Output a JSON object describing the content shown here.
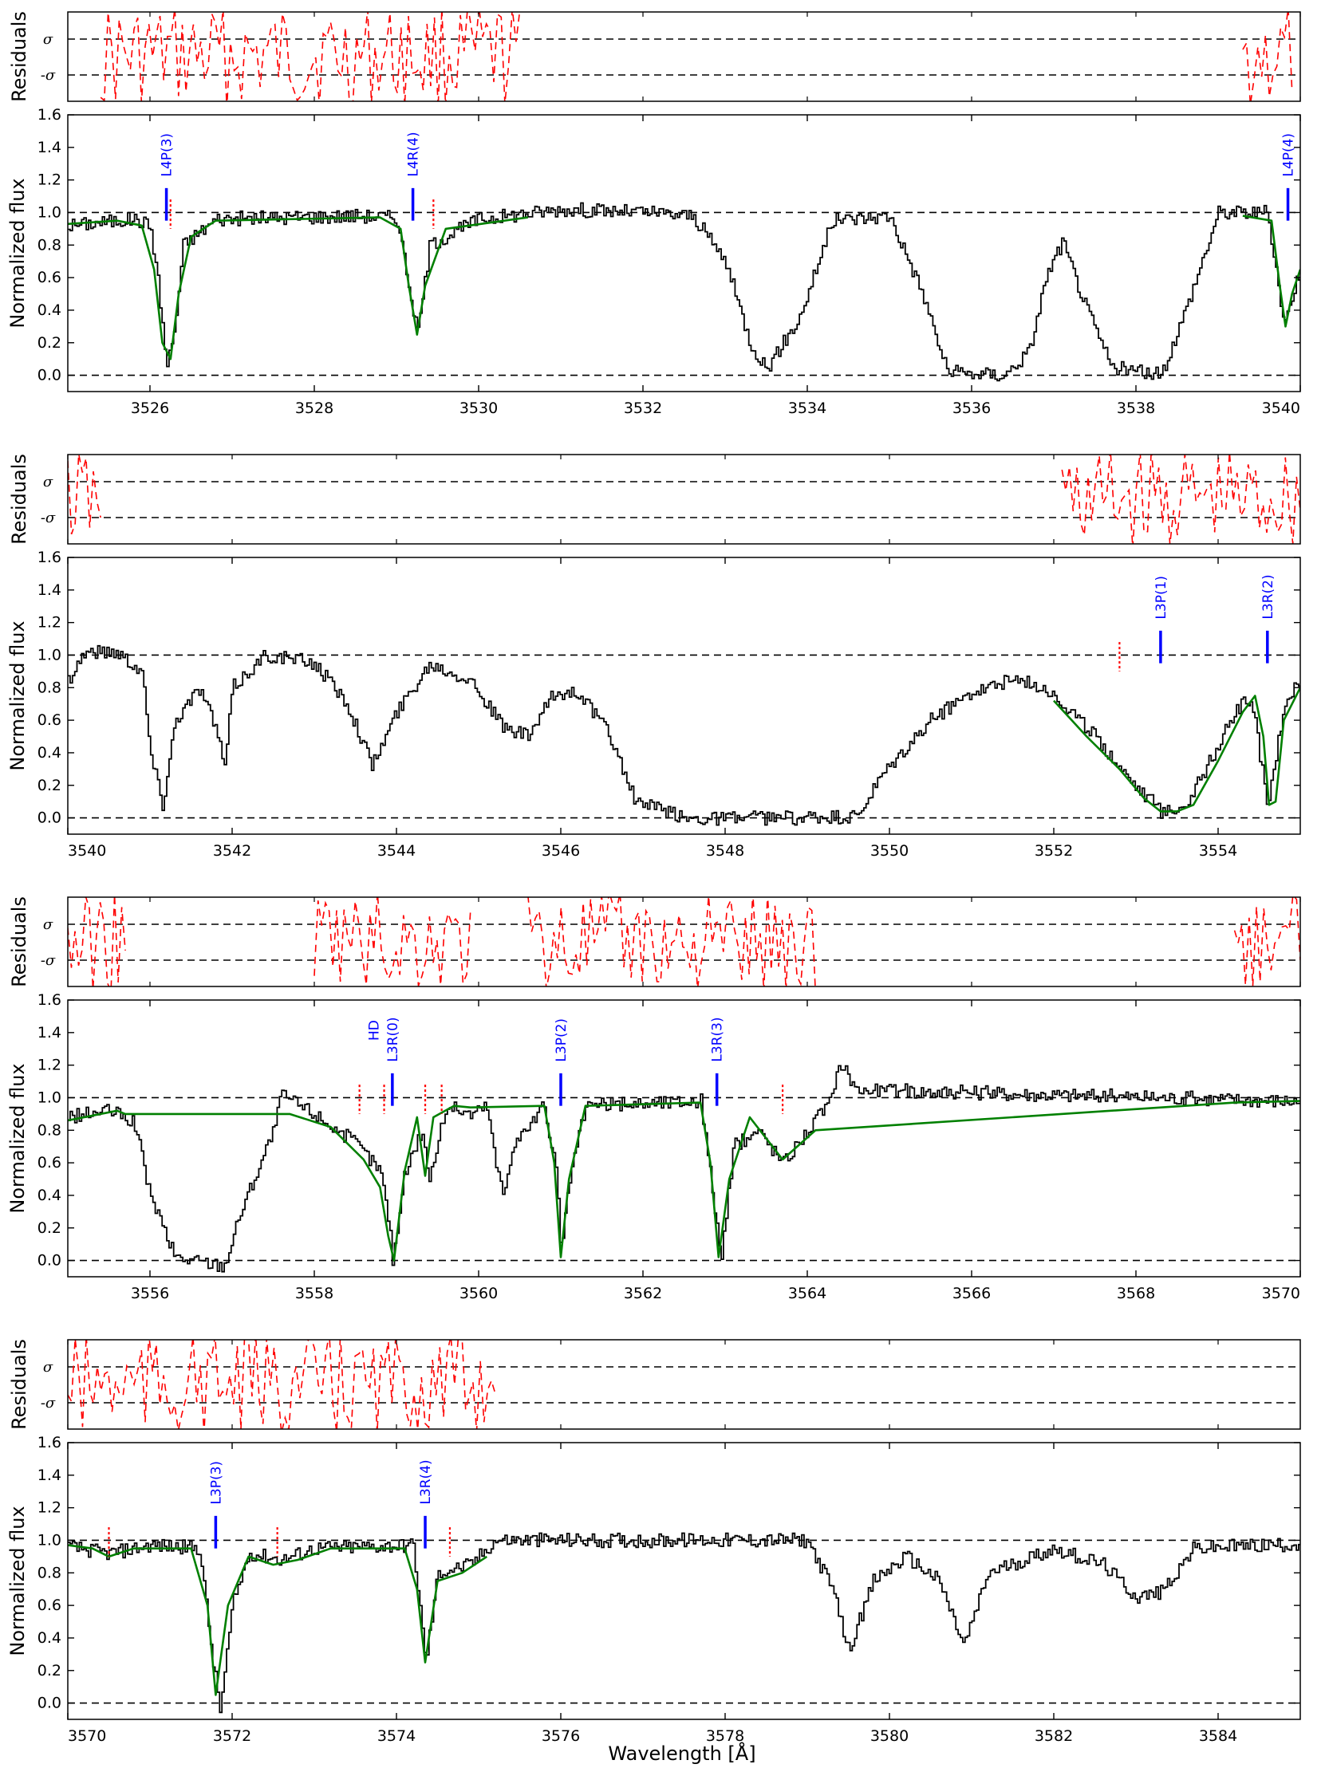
{
  "figure": {
    "xlabel": "Wavelength [Å]",
    "residual_ylabel": "Residuals",
    "flux_ylabel": "Normalized flux",
    "sigma_label": "σ",
    "neg_sigma_label": "-σ",
    "colors": {
      "data": "#000000",
      "model": "#008000",
      "residuals": "#ff0000",
      "line_markers": "#0000ff",
      "blend_markers": "#ff0000",
      "reference_lines": "#000000"
    }
  },
  "chart_data": [
    {
      "type": "line",
      "panel": 1,
      "xlim": [
        3525,
        3540
      ],
      "ylim": [
        -0.1,
        1.6
      ],
      "xticks": [
        3526,
        3528,
        3530,
        3532,
        3534,
        3536,
        3538,
        3540
      ],
      "yticks": [
        0.0,
        0.2,
        0.4,
        0.6,
        0.8,
        1.0,
        1.2,
        1.4,
        1.6
      ],
      "reference_levels": [
        0.0,
        1.0
      ],
      "spectrum": [
        [
          3525.0,
          0.92
        ],
        [
          3525.8,
          0.96
        ],
        [
          3526.0,
          0.92
        ],
        [
          3526.1,
          0.55
        ],
        [
          3526.2,
          0.05
        ],
        [
          3526.3,
          0.3
        ],
        [
          3526.4,
          0.8
        ],
        [
          3526.8,
          0.96
        ],
        [
          3528.5,
          0.98
        ],
        [
          3529.0,
          0.97
        ],
        [
          3529.15,
          0.55
        ],
        [
          3529.25,
          0.25
        ],
        [
          3529.4,
          0.8
        ],
        [
          3530.0,
          0.96
        ],
        [
          3531.0,
          1.02
        ],
        [
          3532.0,
          1.0
        ],
        [
          3532.6,
          0.98
        ],
        [
          3533.0,
          0.7
        ],
        [
          3533.3,
          0.2
        ],
        [
          3533.5,
          0.04
        ],
        [
          3533.9,
          0.35
        ],
        [
          3534.3,
          0.95
        ],
        [
          3535.0,
          0.98
        ],
        [
          3535.4,
          0.5
        ],
        [
          3535.7,
          0.02
        ],
        [
          3536.4,
          0.0
        ],
        [
          3536.7,
          0.15
        ],
        [
          3536.9,
          0.6
        ],
        [
          3537.1,
          0.82
        ],
        [
          3537.4,
          0.4
        ],
        [
          3537.7,
          0.05
        ],
        [
          3538.3,
          0.0
        ],
        [
          3538.6,
          0.4
        ],
        [
          3539.0,
          1.0
        ],
        [
          3539.6,
          1.0
        ],
        [
          3539.8,
          0.3
        ],
        [
          3539.9,
          0.5
        ],
        [
          3540.0,
          0.65
        ]
      ],
      "model": [
        [
          3525.0,
          0.93
        ],
        [
          3525.6,
          0.95
        ],
        [
          3525.9,
          0.92
        ],
        [
          3526.05,
          0.65
        ],
        [
          3526.15,
          0.2
        ],
        [
          3526.25,
          0.1
        ],
        [
          3526.35,
          0.5
        ],
        [
          3526.5,
          0.85
        ],
        [
          3526.8,
          0.95
        ],
        [
          3528.8,
          0.97
        ],
        [
          3529.05,
          0.9
        ],
        [
          3529.15,
          0.55
        ],
        [
          3529.25,
          0.25
        ],
        [
          3529.35,
          0.55
        ],
        [
          3529.6,
          0.9
        ],
        [
          3530.6,
          0.97
        ]
      ],
      "model_segments_end": [
        [
          3539.3,
          0.98
        ],
        [
          3539.65,
          0.95
        ],
        [
          3539.75,
          0.55
        ],
        [
          3539.82,
          0.3
        ],
        [
          3539.9,
          0.5
        ],
        [
          3540.0,
          0.65
        ]
      ],
      "residual_ranges": [
        [
          3525.4,
          3530.5
        ],
        [
          3539.3,
          3539.9
        ]
      ],
      "transitions": [
        {
          "label": "L4P(3)",
          "x": 3526.2
        },
        {
          "label": "L4R(4)",
          "x": 3529.2
        },
        {
          "label": "L4P(4)",
          "x": 3539.85
        }
      ],
      "blend_markers": [
        3526.25,
        3529.45
      ]
    },
    {
      "type": "line",
      "panel": 2,
      "xlim": [
        3540,
        3555
      ],
      "ylim": [
        -0.1,
        1.6
      ],
      "xticks": [
        3540,
        3542,
        3544,
        3546,
        3548,
        3550,
        3552,
        3554
      ],
      "yticks": [
        0.0,
        0.2,
        0.4,
        0.6,
        0.8,
        1.0,
        1.2,
        1.4,
        1.6
      ],
      "reference_levels": [
        0.0,
        1.0
      ],
      "spectrum": [
        [
          3540.0,
          0.85
        ],
        [
          3540.2,
          1.02
        ],
        [
          3540.6,
          1.02
        ],
        [
          3540.9,
          0.9
        ],
        [
          3541.0,
          0.4
        ],
        [
          3541.15,
          0.08
        ],
        [
          3541.3,
          0.6
        ],
        [
          3541.6,
          0.8
        ],
        [
          3541.8,
          0.55
        ],
        [
          3541.9,
          0.3
        ],
        [
          3542.0,
          0.8
        ],
        [
          3542.4,
          1.0
        ],
        [
          3543.0,
          0.95
        ],
        [
          3543.4,
          0.7
        ],
        [
          3543.7,
          0.32
        ],
        [
          3544.0,
          0.65
        ],
        [
          3544.4,
          0.95
        ],
        [
          3544.9,
          0.85
        ],
        [
          3545.3,
          0.55
        ],
        [
          3545.6,
          0.5
        ],
        [
          3545.9,
          0.75
        ],
        [
          3546.2,
          0.78
        ],
        [
          3546.6,
          0.5
        ],
        [
          3546.9,
          0.1
        ],
        [
          3547.5,
          0.0
        ],
        [
          3549.6,
          0.0
        ],
        [
          3549.9,
          0.25
        ],
        [
          3550.5,
          0.6
        ],
        [
          3551.0,
          0.78
        ],
        [
          3551.5,
          0.85
        ],
        [
          3551.9,
          0.8
        ],
        [
          3552.5,
          0.5
        ],
        [
          3553.0,
          0.2
        ],
        [
          3553.3,
          0.04
        ],
        [
          3553.6,
          0.08
        ],
        [
          3553.9,
          0.35
        ],
        [
          3554.2,
          0.65
        ],
        [
          3554.4,
          0.75
        ],
        [
          3554.5,
          0.4
        ],
        [
          3554.6,
          0.05
        ],
        [
          3554.8,
          0.7
        ],
        [
          3555.0,
          0.85
        ]
      ],
      "model": [
        [
          3552.0,
          0.72
        ],
        [
          3552.4,
          0.5
        ],
        [
          3552.8,
          0.3
        ],
        [
          3553.1,
          0.12
        ],
        [
          3553.3,
          0.04
        ],
        [
          3553.5,
          0.04
        ],
        [
          3553.7,
          0.08
        ],
        [
          3554.0,
          0.35
        ],
        [
          3554.3,
          0.65
        ],
        [
          3554.45,
          0.75
        ],
        [
          3554.55,
          0.5
        ],
        [
          3554.62,
          0.08
        ],
        [
          3554.7,
          0.1
        ],
        [
          3554.8,
          0.6
        ],
        [
          3555.0,
          0.8
        ]
      ],
      "residual_ranges": [
        [
          3540.0,
          3540.4
        ],
        [
          3552.1,
          3555.0
        ]
      ],
      "transitions": [
        {
          "label": "L3P(1)",
          "x": 3553.3
        },
        {
          "label": "L3R(2)",
          "x": 3554.6
        }
      ],
      "blend_markers": [
        3552.8
      ]
    },
    {
      "type": "line",
      "panel": 3,
      "xlim": [
        3555,
        3570
      ],
      "ylim": [
        -0.1,
        1.6
      ],
      "xticks": [
        3556,
        3558,
        3560,
        3562,
        3564,
        3566,
        3568,
        3570
      ],
      "yticks": [
        0.0,
        0.2,
        0.4,
        0.6,
        0.8,
        1.0,
        1.2,
        1.4,
        1.6
      ],
      "reference_levels": [
        0.0,
        1.0
      ],
      "spectrum": [
        [
          3555.0,
          0.88
        ],
        [
          3555.5,
          0.92
        ],
        [
          3555.8,
          0.85
        ],
        [
          3556.0,
          0.4
        ],
        [
          3556.3,
          0.02
        ],
        [
          3556.9,
          -0.03
        ],
        [
          3557.1,
          0.3
        ],
        [
          3557.5,
          0.8
        ],
        [
          3557.6,
          1.02
        ],
        [
          3558.0,
          0.9
        ],
        [
          3558.5,
          0.72
        ],
        [
          3558.8,
          0.55
        ],
        [
          3558.9,
          0.25
        ],
        [
          3558.95,
          0.0
        ],
        [
          3559.1,
          0.55
        ],
        [
          3559.3,
          0.8
        ],
        [
          3559.4,
          0.5
        ],
        [
          3559.6,
          0.95
        ],
        [
          3559.9,
          0.9
        ],
        [
          3560.1,
          0.95
        ],
        [
          3560.2,
          0.6
        ],
        [
          3560.3,
          0.4
        ],
        [
          3560.4,
          0.7
        ],
        [
          3560.8,
          0.95
        ],
        [
          3560.95,
          0.5
        ],
        [
          3561.0,
          0.02
        ],
        [
          3561.1,
          0.5
        ],
        [
          3561.3,
          0.95
        ],
        [
          3562.7,
          0.98
        ],
        [
          3562.85,
          0.4
        ],
        [
          3562.95,
          0.0
        ],
        [
          3563.1,
          0.7
        ],
        [
          3563.4,
          0.8
        ],
        [
          3563.7,
          0.6
        ],
        [
          3564.0,
          0.8
        ],
        [
          3564.3,
          1.0
        ],
        [
          3564.4,
          1.22
        ],
        [
          3564.6,
          1.05
        ],
        [
          3570.0,
          0.98
        ]
      ],
      "model": [
        [
          3555.0,
          0.86
        ],
        [
          3555.6,
          0.92
        ],
        [
          3555.7,
          0.9
        ],
        [
          3557.7,
          0.9
        ],
        [
          3558.2,
          0.82
        ],
        [
          3558.6,
          0.62
        ],
        [
          3558.8,
          0.45
        ],
        [
          3558.9,
          0.15
        ],
        [
          3558.97,
          0.0
        ],
        [
          3559.1,
          0.55
        ],
        [
          3559.25,
          0.88
        ],
        [
          3559.35,
          0.52
        ],
        [
          3559.45,
          0.88
        ],
        [
          3559.7,
          0.95
        ],
        [
          3559.9,
          0.94
        ],
        [
          3560.8,
          0.95
        ],
        [
          3560.92,
          0.6
        ],
        [
          3561.0,
          0.02
        ],
        [
          3561.1,
          0.5
        ],
        [
          3561.3,
          0.95
        ],
        [
          3562.7,
          0.97
        ],
        [
          3562.82,
          0.6
        ],
        [
          3562.92,
          0.02
        ],
        [
          3563.05,
          0.5
        ],
        [
          3563.3,
          0.88
        ],
        [
          3563.7,
          0.62
        ],
        [
          3564.1,
          0.8
        ],
        [
          3569.2,
          0.97
        ],
        [
          3570.0,
          0.98
        ]
      ],
      "residual_ranges": [
        [
          3555.0,
          3555.7
        ],
        [
          3558.0,
          3559.9
        ],
        [
          3560.6,
          3564.1
        ],
        [
          3569.2,
          3570.0
        ]
      ],
      "transitions": [
        {
          "label": "HD",
          "x": 3558.9
        },
        {
          "label": "L3R(0)",
          "x": 3558.95
        },
        {
          "label": "L3P(2)",
          "x": 3561.0
        },
        {
          "label": "L3R(3)",
          "x": 3562.9
        }
      ],
      "blend_markers": [
        3558.55,
        3558.85,
        3559.35,
        3559.55,
        3563.7
      ]
    },
    {
      "type": "line",
      "panel": 4,
      "xlim": [
        3570,
        3585
      ],
      "ylim": [
        -0.1,
        1.6
      ],
      "xticks": [
        3570,
        3572,
        3574,
        3576,
        3578,
        3580,
        3582,
        3584
      ],
      "yticks": [
        0.0,
        0.2,
        0.4,
        0.6,
        0.8,
        1.0,
        1.2,
        1.4,
        1.6
      ],
      "reference_levels": [
        0.0,
        1.0
      ],
      "spectrum": [
        [
          3570.0,
          0.96
        ],
        [
          3570.5,
          0.92
        ],
        [
          3571.0,
          0.97
        ],
        [
          3571.6,
          0.95
        ],
        [
          3571.75,
          0.3
        ],
        [
          3571.85,
          -0.05
        ],
        [
          3572.0,
          0.6
        ],
        [
          3572.2,
          0.92
        ],
        [
          3572.6,
          0.88
        ],
        [
          3573.0,
          0.95
        ],
        [
          3574.2,
          0.97
        ],
        [
          3574.3,
          0.5
        ],
        [
          3574.35,
          0.25
        ],
        [
          3574.5,
          0.8
        ],
        [
          3574.9,
          0.85
        ],
        [
          3575.2,
          1.0
        ],
        [
          3579.0,
          1.0
        ],
        [
          3579.3,
          0.7
        ],
        [
          3579.5,
          0.32
        ],
        [
          3579.8,
          0.75
        ],
        [
          3580.2,
          0.9
        ],
        [
          3580.6,
          0.75
        ],
        [
          3580.9,
          0.35
        ],
        [
          3581.2,
          0.8
        ],
        [
          3582.0,
          0.95
        ],
        [
          3582.6,
          0.85
        ],
        [
          3583.0,
          0.65
        ],
        [
          3583.3,
          0.68
        ],
        [
          3583.7,
          0.95
        ],
        [
          3585.0,
          0.98
        ]
      ],
      "model": [
        [
          3570.0,
          0.97
        ],
        [
          3570.3,
          0.95
        ],
        [
          3570.5,
          0.9
        ],
        [
          3570.8,
          0.95
        ],
        [
          3571.5,
          0.95
        ],
        [
          3571.7,
          0.6
        ],
        [
          3571.8,
          0.05
        ],
        [
          3571.95,
          0.6
        ],
        [
          3572.2,
          0.9
        ],
        [
          3572.5,
          0.85
        ],
        [
          3572.8,
          0.88
        ],
        [
          3573.2,
          0.95
        ],
        [
          3574.1,
          0.95
        ],
        [
          3574.25,
          0.7
        ],
        [
          3574.35,
          0.25
        ],
        [
          3574.5,
          0.75
        ],
        [
          3574.8,
          0.8
        ],
        [
          3575.1,
          0.9
        ]
      ],
      "residual_ranges": [
        [
          3570.0,
          3575.2
        ]
      ],
      "transitions": [
        {
          "label": "L3P(3)",
          "x": 3571.8
        },
        {
          "label": "L3R(4)",
          "x": 3574.35
        }
      ],
      "blend_markers": [
        3570.5,
        3572.55,
        3574.65
      ]
    }
  ]
}
